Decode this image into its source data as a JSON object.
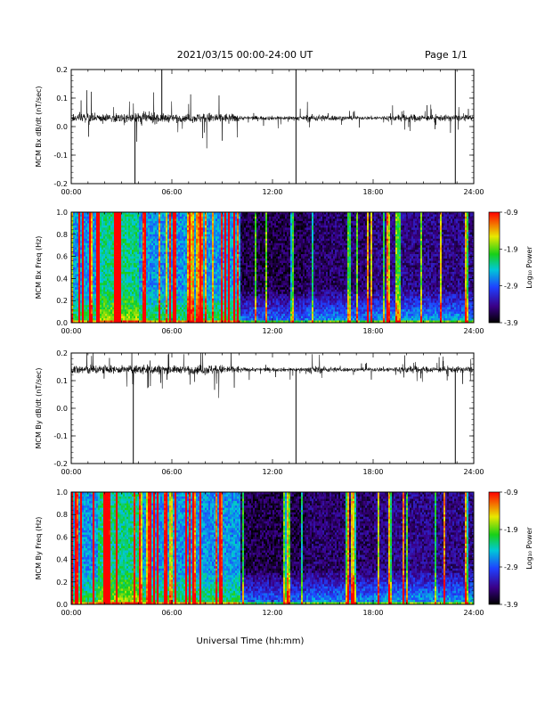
{
  "header": {
    "date_range": "2021/03/15  00:00-24:00 UT",
    "page": "Page 1/1"
  },
  "x_axis": {
    "tick_labels": [
      "00:00",
      "06:00",
      "12:00",
      "18:00",
      "24:00"
    ],
    "title": "Universal Time (hh:mm)"
  },
  "colorbar": {
    "label": "Log₁₀ Power",
    "tick_labels": [
      "-0.9",
      "-1.9",
      "-2.9",
      "-3.9"
    ]
  },
  "colors": {
    "trace": "#000000",
    "background": "#ffffff",
    "spectrogram_low": "#000000",
    "spectrogram_mid": "#2020c0",
    "spectrogram_high": "#ff0000"
  },
  "chart_data": [
    {
      "type": "line",
      "ylabel": "MCM Bx dB/dt (nT/sec)",
      "xlim": [
        0,
        24
      ],
      "ylim": [
        -0.2,
        0.2
      ],
      "ytick_labels": [
        "0.2",
        "0.1",
        "0.0",
        "-0.1",
        "-0.2"
      ],
      "baseline": 0.03,
      "spikes": [
        {
          "x": 3.8,
          "y": -0.2
        },
        {
          "x": 5.4,
          "y": 0.2
        },
        {
          "x": 13.4,
          "y": 0.2
        },
        {
          "x": 13.4,
          "y": -0.2
        },
        {
          "x": 22.9,
          "y": 0.2
        },
        {
          "x": 22.9,
          "y": -0.2
        }
      ]
    },
    {
      "type": "heatmap",
      "ylabel": "MCM Bx Freq (Hz)",
      "xlim": [
        0,
        24
      ],
      "ylim": [
        0.0,
        1.0
      ],
      "ytick_labels": [
        "1.0",
        "0.8",
        "0.6",
        "0.4",
        "0.2",
        "0.0"
      ],
      "zlim": [
        -3.9,
        -0.9
      ],
      "zlabel": "Log₁₀ Power"
    },
    {
      "type": "line",
      "ylabel": "MCM By dB/dt (nT/sec)",
      "xlim": [
        0,
        24
      ],
      "ylim": [
        -0.2,
        0.2
      ],
      "ytick_labels": [
        "0.2",
        "0.1",
        "0.0",
        "-0.1",
        "-0.2"
      ],
      "baseline": 0.14,
      "spikes": [
        {
          "x": 3.7,
          "y": -0.2
        },
        {
          "x": 13.4,
          "y": -0.2
        },
        {
          "x": 22.9,
          "y": -0.2
        }
      ]
    },
    {
      "type": "heatmap",
      "ylabel": "MCM By Freq (Hz)",
      "xlim": [
        0,
        24
      ],
      "ylim": [
        0.0,
        1.0
      ],
      "ytick_labels": [
        "1.0",
        "0.8",
        "0.6",
        "0.4",
        "0.2",
        "0.0"
      ],
      "zlim": [
        -3.9,
        -0.9
      ],
      "zlabel": "Log₁₀ Power"
    }
  ]
}
